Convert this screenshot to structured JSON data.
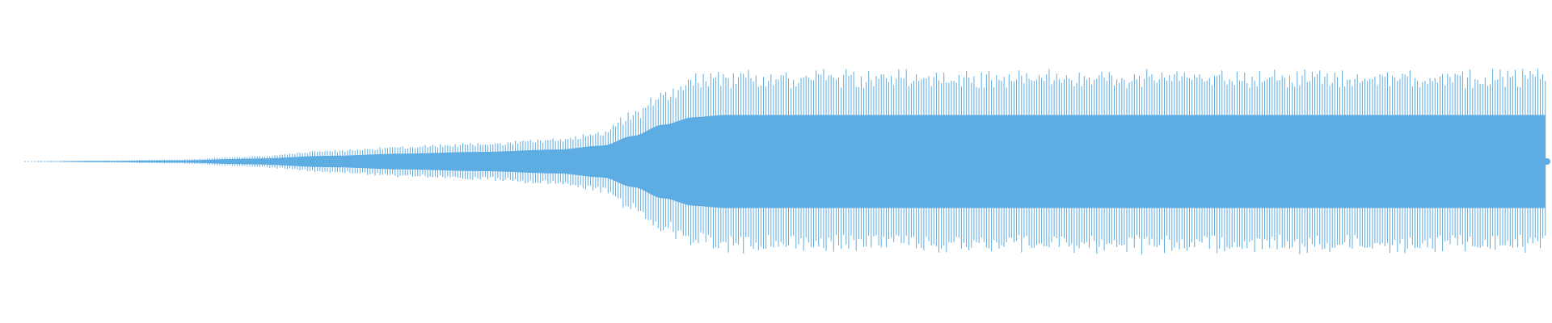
{
  "waveform": {
    "color": "#5DACE2",
    "type": "audio-waveform",
    "envelope": {
      "description_points_fraction_of_full_scale": [
        {
          "t": 0.0,
          "amp": 0.0
        },
        {
          "t": 0.05,
          "amp": 0.01
        },
        {
          "t": 0.1,
          "amp": 0.02
        },
        {
          "t": 0.15,
          "amp": 0.05
        },
        {
          "t": 0.2,
          "amp": 0.1
        },
        {
          "t": 0.25,
          "amp": 0.14
        },
        {
          "t": 0.3,
          "amp": 0.17
        },
        {
          "t": 0.35,
          "amp": 0.21
        },
        {
          "t": 0.38,
          "amp": 0.28
        },
        {
          "t": 0.4,
          "amp": 0.45
        },
        {
          "t": 0.42,
          "amp": 0.65
        },
        {
          "t": 0.44,
          "amp": 0.78
        },
        {
          "t": 0.46,
          "amp": 0.82
        },
        {
          "t": 1.0,
          "amp": 0.82
        }
      ],
      "inner_band_fraction": 0.52
    }
  }
}
